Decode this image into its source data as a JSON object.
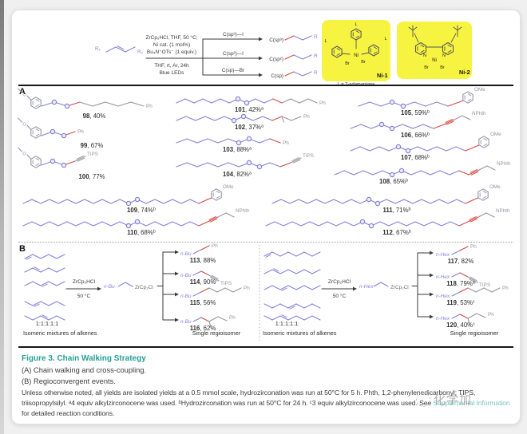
{
  "page": {
    "watermark": "化学加"
  },
  "colors": {
    "teal": "#27a095",
    "chain_blue": "#8484da",
    "bond_red": "#d84a42",
    "product_gray": "#97979f",
    "ring_gray": "#8f8fa8",
    "text_dark": "#3a3a3a",
    "highlight_yellow": "#f7f341"
  },
  "scheme": {
    "substrate_r1": "R₁",
    "substrate_r2": "R₂",
    "conditions_above": [
      "ZrCp₂HCl, THF, 50 °C;",
      "Ni cat. (1 mol%)",
      "Bu₄N⁺OTs⁻ (1 equiv.)"
    ],
    "conditions_below": [
      "THF, rt, Ar, 24h",
      "Blue LEDs"
    ],
    "branches": [
      {
        "electrophile": "C(sp³)—I",
        "product": "C(sp³)",
        "r": "R"
      },
      {
        "electrophile": "C(sp²)—I",
        "product": "C(sp²)",
        "r": "R"
      },
      {
        "electrophile": "C(sp)—Br",
        "product": "C(sp)",
        "r": "R"
      }
    ],
    "catalysts": [
      {
        "name": "Ni-1",
        "metal": "Ni",
        "ligand": "L",
        "halide": "Br",
        "nitrogen": "N",
        "note": "L = 2-adamantane"
      },
      {
        "name": "Ni-2",
        "metal": "Ni",
        "halide": "Br",
        "nitrogen": "N"
      }
    ]
  },
  "section_a": {
    "label": "A",
    "methoxy_atom": "O",
    "compounds": [
      {
        "num": "98",
        "yield": "40%",
        "sup": "",
        "end": "Ph"
      },
      {
        "num": "99",
        "yield": "67%",
        "sup": "",
        "end": "Ph"
      },
      {
        "num": "100",
        "yield": "77%",
        "sup": "",
        "end": "TIPS"
      },
      {
        "num": "101",
        "yield": "42%",
        "sup": "a",
        "end": "Ph"
      },
      {
        "num": "102",
        "yield": "37%",
        "sup": "a",
        "end": "Ph"
      },
      {
        "num": "103",
        "yield": "88%",
        "sup": "a",
        "end": "Ph"
      },
      {
        "num": "104",
        "yield": "82%",
        "sup": "a",
        "end": "TIPS"
      },
      {
        "num": "105",
        "yield": "59%",
        "sup": "b",
        "end": "OMe"
      },
      {
        "num": "106",
        "yield": "66%",
        "sup": "b",
        "end": "NPhth"
      },
      {
        "num": "107",
        "yield": "68%",
        "sup": "b",
        "end": "OMe"
      },
      {
        "num": "108",
        "yield": "65%",
        "sup": "b",
        "end": "NPhth"
      },
      {
        "num": "109",
        "yield": "74%",
        "sup": "b",
        "end": "OMe"
      },
      {
        "num": "110",
        "yield": "68%",
        "sup": "b",
        "end": "NPhth"
      },
      {
        "num": "111",
        "yield": "71%",
        "sup": "b",
        "end": "OMe"
      },
      {
        "num": "112",
        "yield": "67%",
        "sup": "b",
        "end": "NPhth"
      }
    ]
  },
  "section_b": {
    "label": "B",
    "left": {
      "ratio": "1:1:1:1:1",
      "mixture_label": "Isomeric mixtures of alkenes",
      "reagent": "ZrCp₂HCl",
      "temperature": "50 °C",
      "chain_prefix": "n-Bu",
      "zirconocene": "ZrCp₂Cl",
      "regio_label": "Single regioisomer",
      "products": [
        {
          "num": "113",
          "yield": "88%",
          "sup": "",
          "end": "Ph",
          "type": "short"
        },
        {
          "num": "114",
          "yield": "90%",
          "sup": "",
          "end": "TIPS",
          "type": "alkyne"
        },
        {
          "num": "115",
          "yield": "56%",
          "sup": "",
          "end": "Ph",
          "type": "chain"
        },
        {
          "num": "116",
          "yield": "62%",
          "sup": "",
          "end": "Ph",
          "type": "branch"
        }
      ]
    },
    "right": {
      "ratio": "1:1:1:1:1",
      "mixture_label": "Isomeric mixtures of alkenes",
      "reagent": "ZrCp₂HCl",
      "temperature": "50 °C",
      "chain_prefix": "n-Hex",
      "zirconocene": "ZrCp₂Cl",
      "regio_label": "Single regioisomer",
      "products": [
        {
          "num": "117",
          "yield": "82%",
          "sup": "",
          "end": "Ph",
          "type": "short"
        },
        {
          "num": "118",
          "yield": "79%",
          "sup": "a",
          "end": "TIPS",
          "type": "alkyne"
        },
        {
          "num": "119",
          "yield": "53%",
          "sup": "c",
          "end": "Ph",
          "type": "chain"
        },
        {
          "num": "120",
          "yield": "40%",
          "sup": "c",
          "end": "Ph",
          "type": "branch"
        }
      ]
    }
  },
  "caption": {
    "title": "Figure 3. Chain Walking Strategy",
    "line_a": "(A) Chain walking and cross-coupling.",
    "line_b": "(B) Regioconvergent events.",
    "footnote_1": "Unless otherwise noted, all yields are isolated yields at a 0.5 mmol scale, hydrozirconation was run at 50°C for 5 h. Phth, 1,2-phenylenedicarbonyl; TIPS, triisopropylsilyl. ᵃ4 equiv alkylzirconocene was used. ᵇHydrozirconation was run at 50°C for 24 h. ᶜ3 equiv alkylzirconocene was used. See ",
    "footnote_link": "Supplemental Information",
    "footnote_2": " for detailed reaction conditions."
  }
}
